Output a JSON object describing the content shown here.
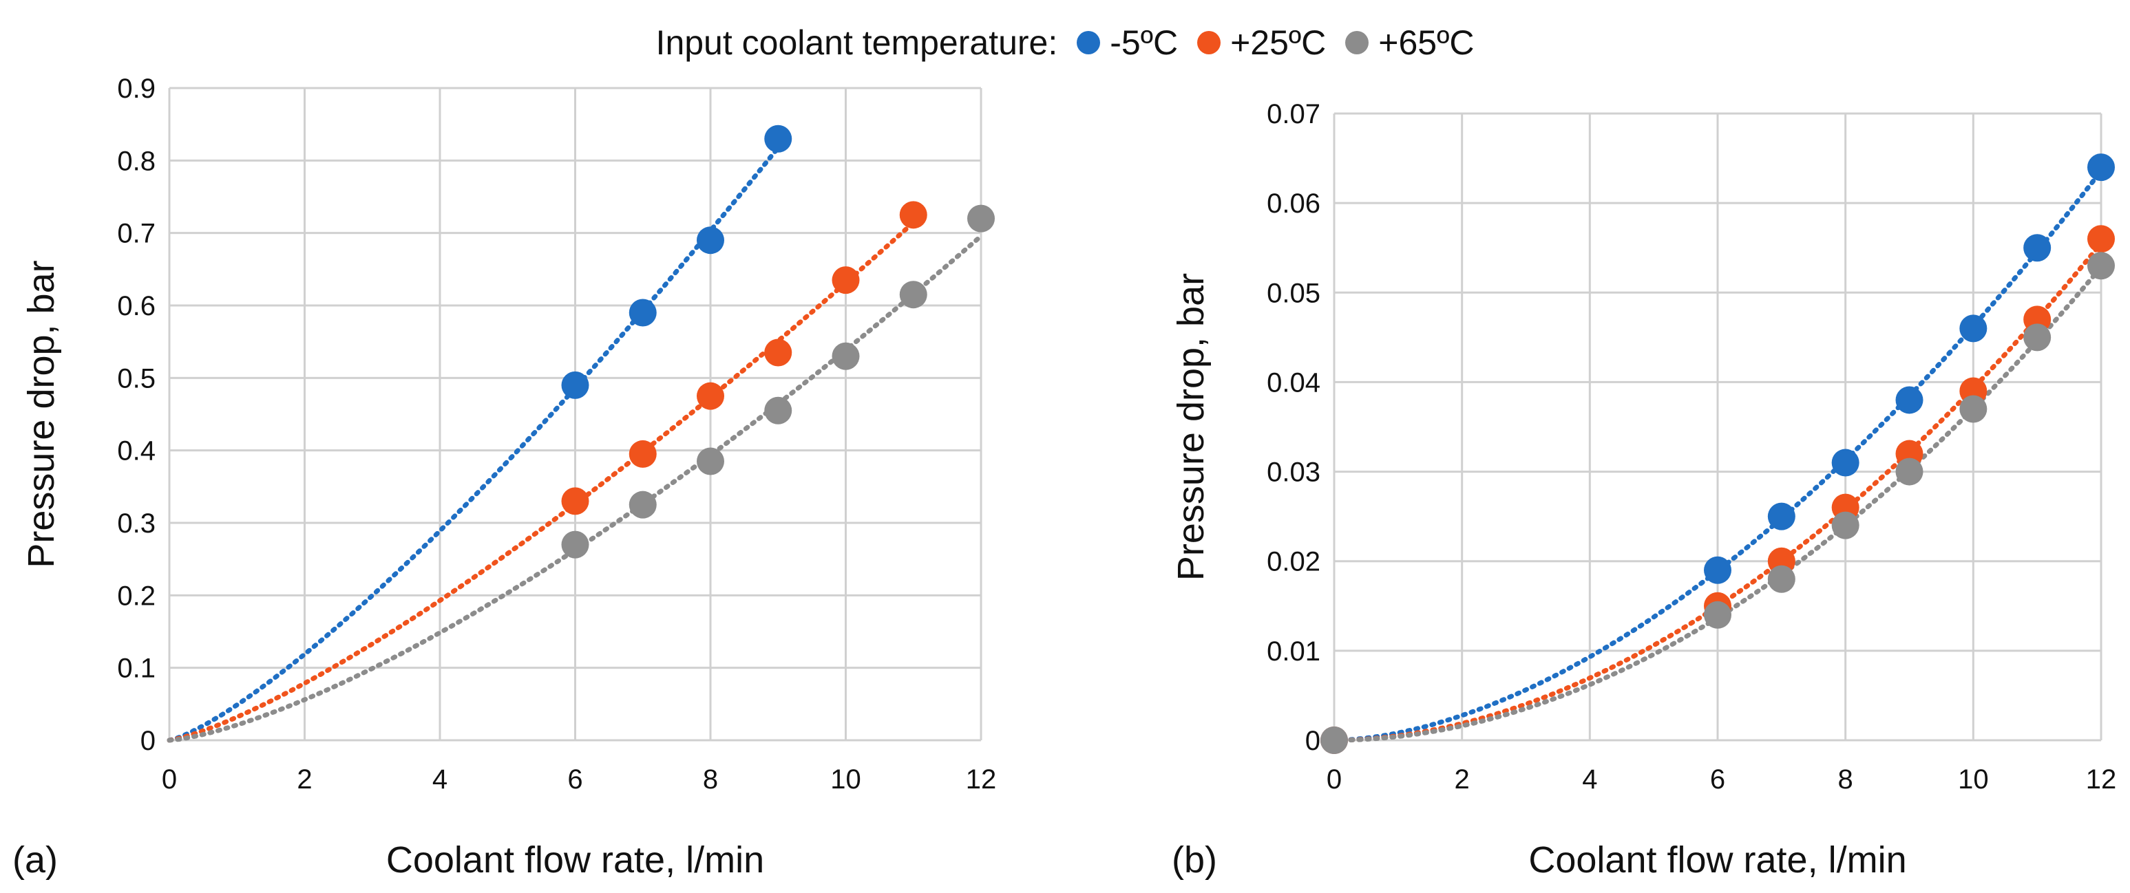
{
  "legend": {
    "title": "Input coolant temperature:",
    "items": [
      {
        "label": "-5ºC",
        "color": "#1f6fc4"
      },
      {
        "label": "+25ºC",
        "color": "#f0531c"
      },
      {
        "label": "+65ºC",
        "color": "#8c8c8c"
      }
    ]
  },
  "chart_data": [
    {
      "type": "scatter",
      "panel_label": "(a)",
      "xlabel": "Coolant flow rate, l/min",
      "ylabel": "Pressure drop, bar",
      "xlim": [
        0,
        12
      ],
      "ylim": [
        0,
        0.9
      ],
      "xticks": [
        0,
        2,
        4,
        6,
        8,
        10,
        12
      ],
      "yticks": [
        0,
        0.1,
        0.2,
        0.3,
        0.4,
        0.5,
        0.6,
        0.7,
        0.8,
        0.9
      ],
      "ytick_labels": [
        "0",
        "0.1",
        "0.2",
        "0.3",
        "0.4",
        "0.5",
        "0.6",
        "0.7",
        "0.8",
        "0.9"
      ],
      "grid": true,
      "trendline": "dotted",
      "series": [
        {
          "name": "-5ºC",
          "color": "#1f6fc4",
          "x": [
            6,
            7,
            8,
            9
          ],
          "y": [
            0.49,
            0.59,
            0.69,
            0.83
          ]
        },
        {
          "name": "+25ºC",
          "color": "#f0531c",
          "x": [
            6,
            7,
            8,
            9,
            10,
            11
          ],
          "y": [
            0.33,
            0.395,
            0.475,
            0.535,
            0.635,
            0.725
          ]
        },
        {
          "name": "+65ºC",
          "color": "#8c8c8c",
          "x": [
            6,
            7,
            8,
            9,
            10,
            11,
            12
          ],
          "y": [
            0.27,
            0.325,
            0.385,
            0.455,
            0.53,
            0.615,
            0.72
          ]
        }
      ]
    },
    {
      "type": "scatter",
      "panel_label": "(b)",
      "xlabel": "Coolant flow rate, l/min",
      "ylabel": "Pressure drop, bar",
      "xlim": [
        0,
        12
      ],
      "ylim": [
        0,
        0.07
      ],
      "xticks": [
        0,
        2,
        4,
        6,
        8,
        10,
        12
      ],
      "yticks": [
        0,
        0.01,
        0.02,
        0.03,
        0.04,
        0.05,
        0.06,
        0.07
      ],
      "ytick_labels": [
        "0",
        "0.01",
        "0.02",
        "0.03",
        "0.04",
        "0.05",
        "0.06",
        "0.07"
      ],
      "grid": true,
      "trendline": "dotted",
      "series": [
        {
          "name": "-5ºC",
          "color": "#1f6fc4",
          "x": [
            0,
            6,
            7,
            8,
            9,
            10,
            11,
            12
          ],
          "y": [
            0,
            0.019,
            0.025,
            0.031,
            0.038,
            0.046,
            0.055,
            0.064
          ]
        },
        {
          "name": "+25ºC",
          "color": "#f0531c",
          "x": [
            0,
            6,
            7,
            8,
            9,
            10,
            11,
            12
          ],
          "y": [
            0,
            0.015,
            0.02,
            0.026,
            0.032,
            0.039,
            0.047,
            0.056
          ]
        },
        {
          "name": "+65ºC",
          "color": "#8c8c8c",
          "x": [
            0,
            6,
            7,
            8,
            9,
            10,
            11,
            12
          ],
          "y": [
            0,
            0.014,
            0.018,
            0.024,
            0.03,
            0.037,
            0.045,
            0.053
          ]
        }
      ]
    }
  ]
}
